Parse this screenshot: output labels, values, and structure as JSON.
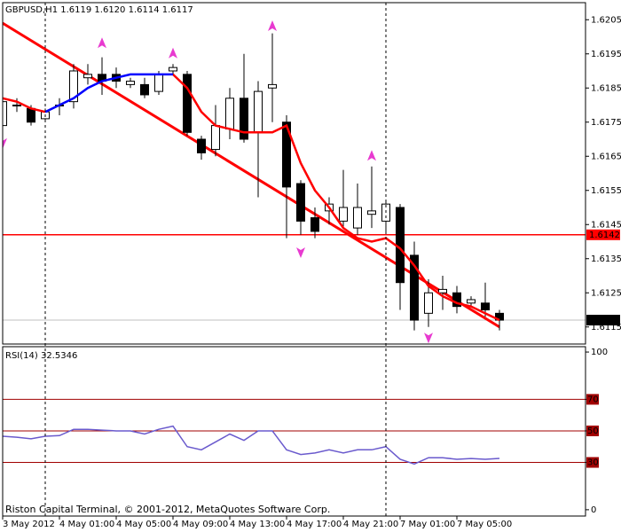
{
  "chart_data": [
    {
      "type": "candlestick",
      "title": "GBPUSD,H1  1.6119 1.6120 1.6114 1.6117",
      "categories": [
        "3 May 2012",
        null,
        null,
        null,
        "4 May 01:00",
        null,
        null,
        null,
        "4 May 05:00",
        null,
        null,
        null,
        "4 May 09:00",
        null,
        null,
        null,
        "4 May 13:00",
        null,
        null,
        null,
        "4 May 17:00",
        null,
        null,
        null,
        "4 May 21:00",
        null,
        null,
        null,
        "7 May 01:00",
        null,
        null,
        null,
        "7 May 05:00",
        null,
        null,
        null
      ],
      "open": [
        1.6174,
        1.618,
        1.6179,
        1.6176,
        1.618,
        1.6181,
        1.6188,
        1.6189,
        1.6189,
        1.6186,
        1.6186,
        1.6184,
        1.619,
        1.6189,
        1.617,
        1.6167,
        1.6173,
        1.6182,
        1.6172,
        1.6185,
        1.6175,
        1.6157,
        1.6147,
        1.6149,
        1.6146,
        1.6144,
        1.6148,
        1.6146,
        1.615,
        1.6136,
        1.6119,
        1.6125,
        1.6125,
        1.6122,
        1.6122,
        1.6119
      ],
      "high": [
        1.6183,
        1.6182,
        1.618,
        1.6179,
        1.6182,
        1.6192,
        1.6192,
        1.6194,
        1.6191,
        1.6188,
        1.6188,
        1.619,
        1.6192,
        1.619,
        1.6171,
        1.618,
        1.6185,
        1.6195,
        1.6187,
        1.6201,
        1.6177,
        1.6158,
        1.615,
        1.6153,
        1.6161,
        1.6157,
        1.6162,
        1.6152,
        1.6151,
        1.614,
        1.6129,
        1.613,
        1.6127,
        1.6124,
        1.6128,
        1.612
      ],
      "low": [
        1.6172,
        1.6178,
        1.6174,
        1.6175,
        1.6177,
        1.6179,
        1.6186,
        1.6183,
        1.6185,
        1.6185,
        1.6182,
        1.6183,
        1.6189,
        1.6171,
        1.6164,
        1.6165,
        1.617,
        1.6169,
        1.6153,
        1.6175,
        1.6141,
        1.6142,
        1.6141,
        1.6145,
        1.6144,
        1.6142,
        1.6144,
        1.6143,
        1.612,
        1.6114,
        1.6115,
        1.612,
        1.6119,
        1.6121,
        1.6118,
        1.6114
      ],
      "close": [
        1.6181,
        1.618,
        1.6175,
        1.6178,
        1.618,
        1.619,
        1.6189,
        1.6187,
        1.6187,
        1.6187,
        1.6183,
        1.6189,
        1.6191,
        1.6172,
        1.6166,
        1.6174,
        1.6182,
        1.617,
        1.6184,
        1.6186,
        1.6156,
        1.6146,
        1.6143,
        1.6151,
        1.615,
        1.615,
        1.6149,
        1.6151,
        1.6128,
        1.6117,
        1.6125,
        1.6126,
        1.6121,
        1.6123,
        1.612,
        1.6117
      ],
      "series": [
        {
          "name": "MA falling",
          "color": "#ff0000",
          "values": [
            1.6182,
            1.6181,
            1.6179,
            1.6178,
            null,
            null,
            null,
            null,
            null,
            null,
            null,
            null,
            1.6189,
            1.6185,
            1.6178,
            1.6174,
            1.6173,
            1.6172,
            1.6172,
            1.6172,
            1.6174,
            1.6163,
            1.6155,
            1.615,
            1.6144,
            1.6141,
            1.614,
            1.6141,
            1.6138,
            1.6133,
            1.6127,
            1.6124,
            1.6122,
            1.6121,
            1.6119,
            1.6117
          ]
        },
        {
          "name": "MA rising",
          "color": "#0000ff",
          "values": [
            null,
            null,
            null,
            1.6178,
            1.618,
            1.6182,
            1.6185,
            1.6187,
            1.6188,
            1.6189,
            1.6189,
            1.6189,
            1.6189,
            null,
            null,
            null,
            null,
            null,
            null,
            null,
            null,
            null,
            null,
            null,
            null,
            null,
            null,
            null,
            null,
            null,
            null,
            null,
            null,
            null,
            null,
            null
          ]
        }
      ],
      "trendline": {
        "color": "#ff0000",
        "start": [
          0,
          1.6204
        ],
        "end": [
          35,
          1.6115
        ]
      },
      "hline": 1.6142,
      "hline_color": "#ff0000",
      "last_price": 1.6117,
      "fractals_color": "#e83ad0",
      "fractals_up": [
        {
          "index": 7,
          "price": 1.6198
        },
        {
          "index": 12,
          "price": 1.6195
        },
        {
          "index": 19,
          "price": 1.6203
        },
        {
          "index": 26,
          "price": 1.6165
        }
      ],
      "fractals_down": [
        {
          "index": 0,
          "price": 1.6169
        },
        {
          "index": 21,
          "price": 1.6137
        },
        {
          "index": 30,
          "price": 1.6112
        }
      ],
      "separators": [
        3,
        27
      ],
      "ylim": [
        1.611,
        1.621
      ],
      "yticks": [
        1.6205,
        1.6195,
        1.6185,
        1.6175,
        1.6165,
        1.6155,
        1.6145,
        1.6135,
        1.6125,
        1.6115
      ]
    },
    {
      "type": "line",
      "title": "RSI(14) 32.5346",
      "color": "#6a5acd",
      "values": [
        46.6,
        46,
        45,
        46.6,
        47,
        51,
        51,
        50.5,
        50,
        50,
        48,
        51,
        53,
        40,
        38,
        43,
        48,
        44,
        50,
        50,
        38,
        35,
        36,
        38,
        36,
        38,
        38,
        40,
        32,
        29,
        33,
        33,
        32,
        32.5,
        32,
        32.5346
      ],
      "levels": [
        70,
        50,
        30
      ],
      "level_color": "#a00000",
      "ylim": [
        -4,
        103.4
      ],
      "yticks": [
        100,
        70,
        50,
        30,
        0
      ]
    }
  ],
  "footer": "Riston Capital Terminal, © 2001-2012, MetaQuotes Software Corp."
}
